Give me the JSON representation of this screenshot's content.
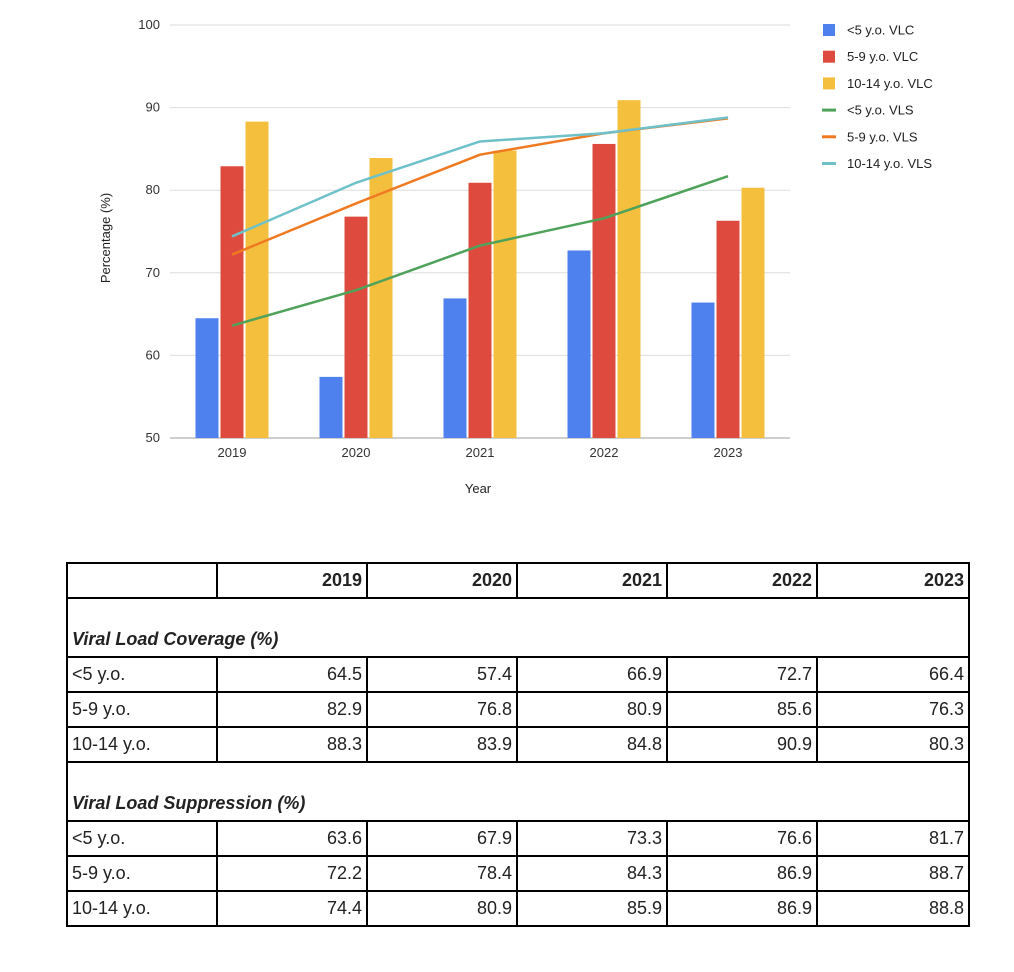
{
  "chart_data": {
    "type": "bar",
    "categories": [
      "2019",
      "2020",
      "2021",
      "2022",
      "2023"
    ],
    "ylim": [
      50,
      100
    ],
    "yticks": [
      50,
      60,
      70,
      80,
      90,
      100
    ],
    "xlabel": "Year",
    "ylabel": "Percentage (%)",
    "legend_position": "right",
    "grid": true,
    "bar_series": [
      {
        "name": "<5 y.o. VLC",
        "color": "#4f81ee",
        "values": [
          64.5,
          57.4,
          66.9,
          72.7,
          66.4
        ]
      },
      {
        "name": "5-9 y.o. VLC",
        "color": "#de4b3e",
        "values": [
          82.9,
          76.8,
          80.9,
          85.6,
          76.3
        ]
      },
      {
        "name": "10-14 y.o. VLC",
        "color": "#f4bf3d",
        "values": [
          88.3,
          83.9,
          84.8,
          90.9,
          80.3
        ]
      }
    ],
    "line_series": [
      {
        "name": "<5 y.o. VLS",
        "color": "#4fa25a",
        "values": [
          63.6,
          67.9,
          73.3,
          76.6,
          81.7
        ]
      },
      {
        "name": "5-9 y.o. VLS",
        "color": "#f07a22",
        "values": [
          72.2,
          78.4,
          84.3,
          86.9,
          88.7
        ]
      },
      {
        "name": "10-14 y.o. VLS",
        "color": "#6ec1c9",
        "values": [
          74.4,
          80.9,
          85.9,
          86.9,
          88.8
        ]
      }
    ]
  },
  "table": {
    "years": [
      "2019",
      "2020",
      "2021",
      "2022",
      "2023"
    ],
    "sections": [
      {
        "title": "Viral Load Coverage (%)",
        "rows": [
          {
            "label": "<5 y.o.",
            "values": [
              "64.5",
              "57.4",
              "66.9",
              "72.7",
              "66.4"
            ]
          },
          {
            "label": "5-9 y.o.",
            "values": [
              "82.9",
              "76.8",
              "80.9",
              "85.6",
              "76.3"
            ]
          },
          {
            "label": "10-14 y.o.",
            "values": [
              "88.3",
              "83.9",
              "84.8",
              "90.9",
              "80.3"
            ]
          }
        ]
      },
      {
        "title": "Viral Load Suppression (%)",
        "rows": [
          {
            "label": "<5 y.o.",
            "values": [
              "63.6",
              "67.9",
              "73.3",
              "76.6",
              "81.7"
            ]
          },
          {
            "label": "5-9 y.o.",
            "values": [
              "72.2",
              "78.4",
              "84.3",
              "86.9",
              "88.7"
            ]
          },
          {
            "label": "10-14 y.o.",
            "values": [
              "74.4",
              "80.9",
              "85.9",
              "86.9",
              "88.8"
            ]
          }
        ]
      }
    ]
  }
}
